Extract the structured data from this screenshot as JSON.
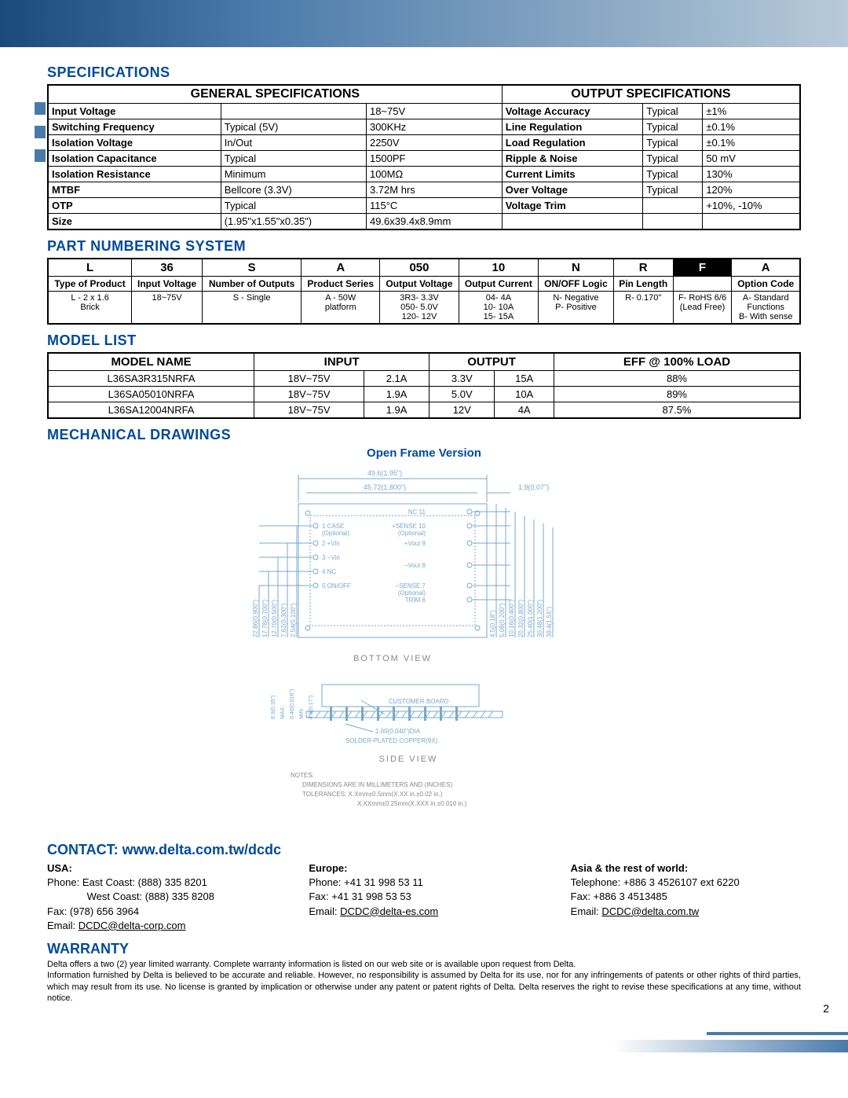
{
  "sections": {
    "specifications_title": "SPECIFICATIONS",
    "part_numbering_title": "PART NUMBERING SYSTEM",
    "model_list_title": "MODEL LIST",
    "mechanical_title": "MECHANICAL DRAWINGS",
    "open_frame_title": "Open Frame Version",
    "contact_title": "CONTACT: www.delta.com.tw/dcdc",
    "warranty_title": "WARRANTY"
  },
  "spec_table": {
    "general_header": "GENERAL SPECIFICATIONS",
    "output_header": "OUTPUT SPECIFICATIONS",
    "general_rows": [
      [
        "Input Voltage",
        "",
        "18~75V"
      ],
      [
        "Switching Frequency",
        "Typical (5V)",
        "300KHz"
      ],
      [
        "Isolation Voltage",
        "In/Out",
        "2250V"
      ],
      [
        "Isolation Capacitance",
        "Typical",
        "1500PF"
      ],
      [
        "Isolation Resistance",
        "Minimum",
        "100MΩ"
      ],
      [
        "MTBF",
        "Bellcore (3.3V)",
        "3.72M hrs"
      ],
      [
        "OTP",
        "Typical",
        "115°C"
      ],
      [
        "Size",
        "(1.95\"x1.55\"x0.35\")",
        "49.6x39.4x8.9mm"
      ]
    ],
    "output_rows": [
      [
        "Voltage Accuracy",
        "Typical",
        "±1%"
      ],
      [
        "Line Regulation",
        "Typical",
        "±0.1%"
      ],
      [
        "Load Regulation",
        "Typical",
        "±0.1%"
      ],
      [
        "Ripple & Noise",
        "Typical",
        "50 mV"
      ],
      [
        "Current Limits",
        "Typical",
        "130%"
      ],
      [
        "Over Voltage",
        "Typical",
        "120%"
      ],
      [
        "Voltage Trim",
        "",
        "+10%, -10%"
      ]
    ]
  },
  "part_numbering": {
    "row1": [
      "L",
      "36",
      "S",
      "A",
      "050",
      "10",
      "N",
      "R",
      "F",
      "A"
    ],
    "row2": [
      "Type of Product",
      "Input Voltage",
      "Number of Outputs",
      "Product Series",
      "Output Voltage",
      "Output Current",
      "ON/OFF Logic",
      "Pin Length",
      "",
      "Option Code"
    ],
    "row3": [
      "L - 2 x 1.6\nBrick",
      "18~75V",
      "S - Single",
      "A - 50W\nplatform",
      "3R3- 3.3V\n050- 5.0V\n120- 12V",
      "04- 4A\n10- 10A\n15- 15A",
      "N- Negative\nP- Positive",
      "R- 0.170\"",
      "F- RoHS 6/6\n(Lead Free)",
      "A- Standard\nFunctions\nB- With sense"
    ]
  },
  "model_list": {
    "headers": [
      "MODEL NAME",
      "INPUT",
      "",
      "OUTPUT",
      "",
      "EFF @ 100% LOAD"
    ],
    "rows": [
      [
        "L36SA3R315NRFA",
        "18V~75V",
        "2.1A",
        "3.3V",
        "15A",
        "88%"
      ],
      [
        "L36SA05010NRFA",
        "18V~75V",
        "1.9A",
        "5.0V",
        "10A",
        "89%"
      ],
      [
        "L36SA12004NRFA",
        "18V~75V",
        "1.9A",
        "12V",
        "4A",
        "87.5%"
      ]
    ]
  },
  "drawing": {
    "dim_top1": "49.6(1.95\")",
    "dim_top2": "45.72(1.800\")",
    "dim_top_r": "1.9(0.07\")",
    "pin_labels_left": [
      "1 CASE\n(Optional)",
      "2 +Vin",
      "3 −Vin",
      "4 NC",
      "5 ON/OFF"
    ],
    "pin_labels_right": [
      "NC 11",
      "+SENSE 10\n(Optional)",
      "+Vout 9",
      "−Vout 8",
      "−SENSE 7\n(Optional)",
      "TRIM 6"
    ],
    "dims_left": [
      "22.86(0.900\")",
      "17.78(0.700\")",
      "12.70(0.500\")",
      "7.62(0.300\")",
      "2.54(0.100\")"
    ],
    "dims_right": [
      "4.5(0.18\")",
      "5.08(0.200\")",
      "10.16(0.400\")",
      "20.32(0.800\")",
      "25.40(1.000\")",
      "30.48(1.200\")",
      "39.4(1.55\")"
    ],
    "bottom_view": "BOTTOM  VIEW",
    "side_view": "SIDE  VIEW",
    "side_dims_left": [
      "8.9(0.35\")",
      "MAX.",
      "0.40(0.016\")",
      "MIN.",
      "4.3(0.17\")"
    ],
    "customer_board": "CUSTOMER BOARD",
    "pin_dia": "1.00(0.040\")DIA",
    "pin_mat": "SOLDER-PLATED COPPER(9X)",
    "notes_hdr": "NOTES:",
    "notes1": "DIMENSIONS ARE IN MILLIMETERS AND (INCHES)",
    "notes2": "TOLERANCES: X.Xmm±0.5mm(X.XX in.±0.02 in.)",
    "notes3": "X.XXmm±0.25mm(X.XXX in.±0.010 in.)"
  },
  "contact": {
    "usa": {
      "region": "USA:",
      "line1": "Phone:  East Coast: (888) 335 8201",
      "line2": "              West Coast: (888) 335 8208",
      "fax": "Fax: (978) 656 3964",
      "email_label": "Email: ",
      "email": "DCDC@delta-corp.com"
    },
    "europe": {
      "region": "Europe:",
      "phone": "Phone: +41 31 998 53 11",
      "fax": "Fax: +41 31 998 53 53",
      "email_label": "Email: ",
      "email": "DCDC@delta-es.com"
    },
    "asia": {
      "region": "Asia & the rest of world:",
      "phone": "Telephone: +886 3 4526107 ext 6220",
      "fax": "Fax: +886 3 4513485",
      "email_label": "Email: ",
      "email": "DCDC@delta.com.tw"
    }
  },
  "warranty_text": "Delta offers a two (2) year limited warranty. Complete warranty information is listed on our web site or is available upon request from Delta.\nInformation furnished by Delta is believed to be accurate and reliable. However, no responsibility is assumed by Delta for its use, nor for any infringements of patents or other rights of third parties, which may result from its use. No license is granted by implication or otherwise under any patent or patent rights of Delta. Delta reserves the right to revise these specifications at any time, without notice.",
  "page_number": "2"
}
